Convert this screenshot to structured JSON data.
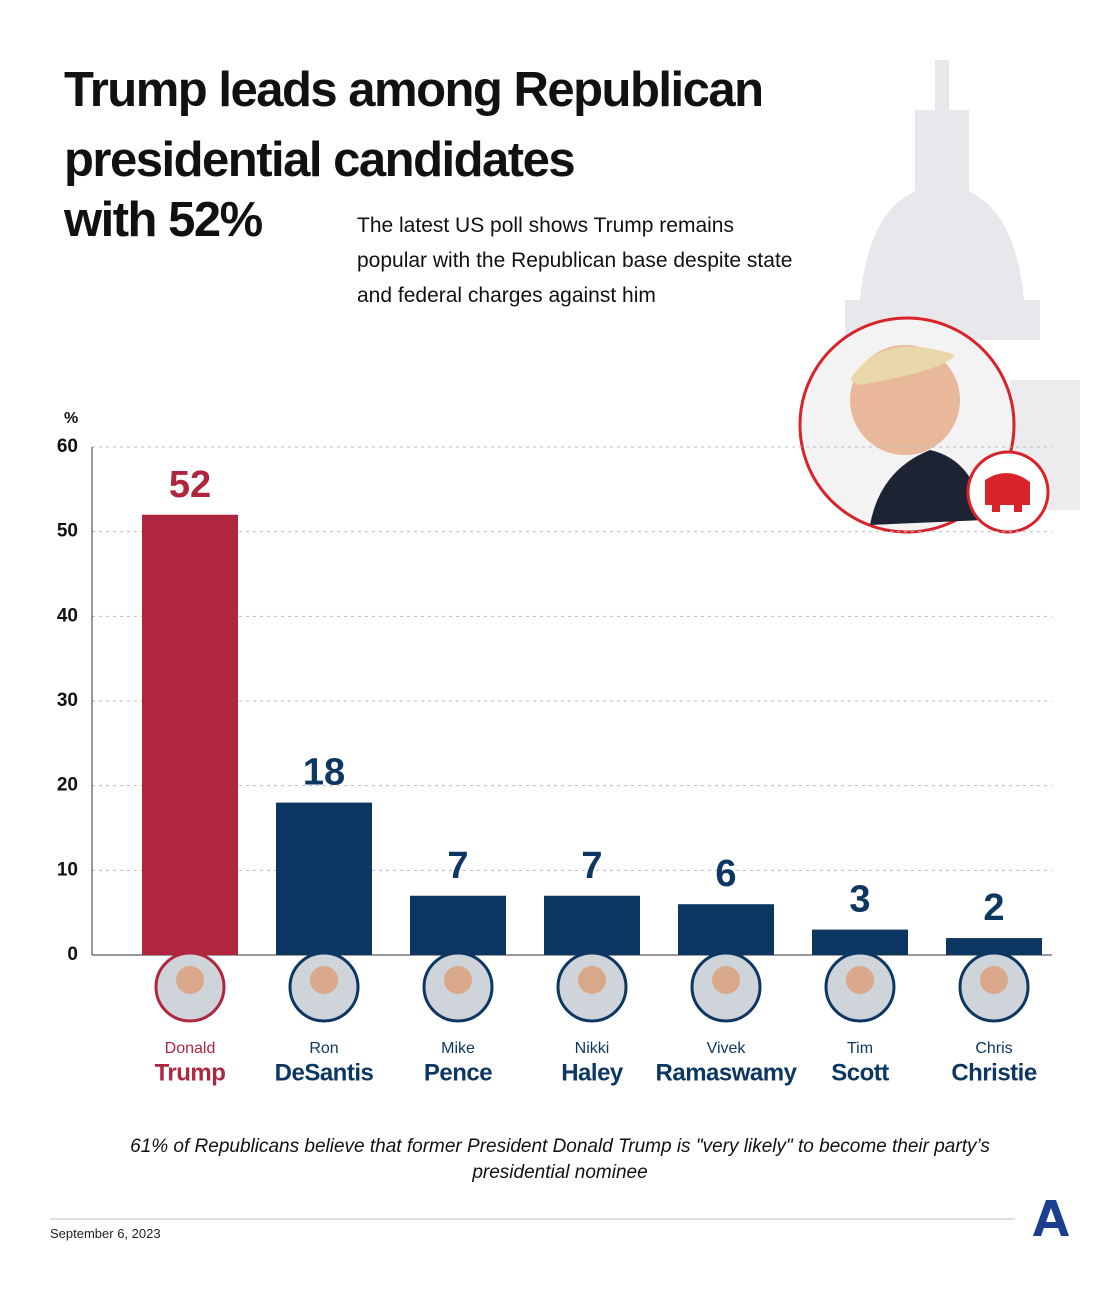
{
  "chart_data": {
    "type": "bar",
    "title": [
      "Trump leads among Republican",
      "presidential candidates",
      "with 52%"
    ],
    "subtitle": "The latest US poll shows Trump remains popular with the Republican base despite state and federal charges against him",
    "y_label": "%",
    "categories": [
      {
        "first": "Donald",
        "last": "Trump"
      },
      {
        "first": "Ron",
        "last": "DeSantis"
      },
      {
        "first": "Mike",
        "last": "Pence"
      },
      {
        "first": "Nikki",
        "last": "Haley"
      },
      {
        "first": "Vivek",
        "last": "Ramaswamy"
      },
      {
        "first": "Tim",
        "last": "Scott"
      },
      {
        "first": "Chris",
        "last": "Christie"
      }
    ],
    "values": [
      52,
      18,
      7,
      7,
      6,
      3,
      2
    ],
    "colors": [
      "#b0263f",
      "#0c3763",
      "#0c3763",
      "#0c3763",
      "#0c3763",
      "#0c3763",
      "#0c3763"
    ],
    "ylim": [
      0,
      60
    ],
    "yticks": [
      0,
      10,
      20,
      30,
      40,
      50,
      60
    ],
    "grid": true,
    "footnote": "61% of Republicans believe that former President Donald Trump is \"very likely\" to become their party’s presidential nominee",
    "date": "September 6, 2023"
  }
}
